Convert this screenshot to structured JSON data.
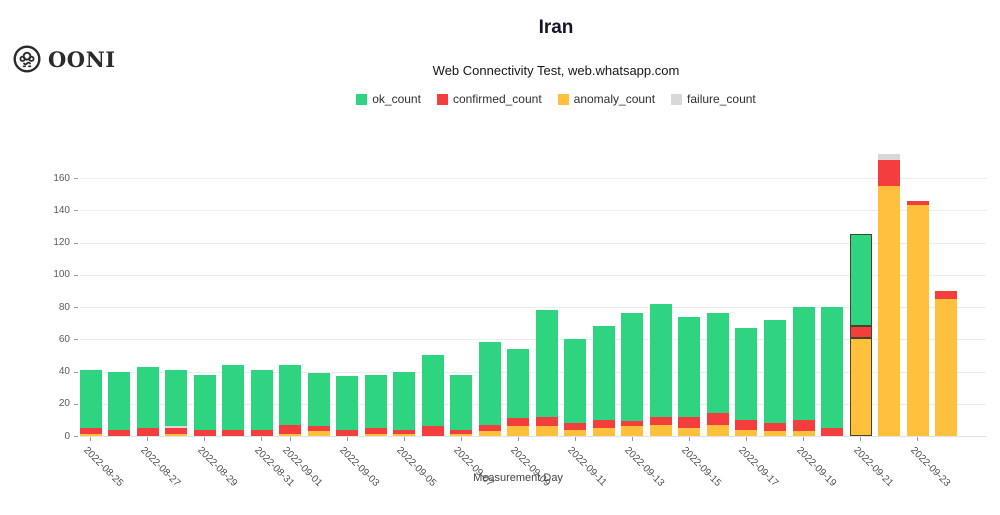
{
  "header": {
    "brand": "OONI",
    "title": "Iran",
    "subtitle": "Web Connectivity Test, web.whatsapp.com"
  },
  "legend": [
    {
      "name": "ok_count",
      "label": "ok_count",
      "color": "#2ED47F"
    },
    {
      "name": "confirmed_count",
      "label": "confirmed_count",
      "color": "#F43E3E"
    },
    {
      "name": "anomaly_count",
      "label": "anomaly_count",
      "color": "#FFC13B"
    },
    {
      "name": "failure_count",
      "label": "failure_count",
      "color": "#D8D8D8"
    }
  ],
  "colors": {
    "ok": "#2ED47F",
    "confirmed": "#F43E3E",
    "anomaly": "#FFC13B",
    "failure": "#D8D8D8",
    "highlight_border": "#45452e",
    "gridline": "#ececec"
  },
  "chart_data": {
    "type": "bar",
    "stacked": true,
    "title": "Iran",
    "subtitle": "Web Connectivity Test, web.whatsapp.com",
    "xlabel": "Measurement Day",
    "ylabel": "",
    "ylim": [
      0,
      180
    ],
    "grid": true,
    "legend_position": "top",
    "yticks": [
      0,
      20,
      40,
      60,
      80,
      100,
      120,
      140,
      160
    ],
    "categories": [
      "2022-08-25",
      "2022-08-26",
      "2022-08-27",
      "2022-08-28",
      "2022-08-29",
      "2022-08-30",
      "2022-08-31",
      "2022-09-01",
      "2022-09-02",
      "2022-09-03",
      "2022-09-04",
      "2022-09-05",
      "2022-09-06",
      "2022-09-07",
      "2022-09-08",
      "2022-09-09",
      "2022-09-10",
      "2022-09-11",
      "2022-09-12",
      "2022-09-13",
      "2022-09-14",
      "2022-09-15",
      "2022-09-16",
      "2022-09-17",
      "2022-09-18",
      "2022-09-19",
      "2022-09-20",
      "2022-09-21",
      "2022-09-22",
      "2022-09-23",
      "2022-09-24"
    ],
    "x_tick_labels": [
      "2022-08-25",
      "2022-08-27",
      "2022-08-29",
      "2022-08-31",
      "2022-09-01",
      "2022-09-03",
      "2022-09-05",
      "2022-09-07",
      "2022-09-09",
      "2022-09-11",
      "2022-09-13",
      "2022-09-15",
      "2022-09-17",
      "2022-09-19",
      "2022-09-21",
      "2022-09-23"
    ],
    "series": [
      {
        "name": "anomaly_count",
        "color": "#FFC13B",
        "values": [
          1,
          0,
          0,
          1,
          0,
          0,
          0,
          1,
          3,
          0,
          1,
          1,
          0,
          1,
          3,
          6,
          6,
          4,
          5,
          6,
          7,
          5,
          7,
          4,
          3,
          3,
          0,
          61,
          155,
          143,
          85
        ]
      },
      {
        "name": "confirmed_count",
        "color": "#F43E3E",
        "values": [
          4,
          4,
          5,
          4,
          4,
          4,
          4,
          6,
          3,
          4,
          4,
          3,
          6,
          3,
          4,
          5,
          6,
          4,
          5,
          3,
          5,
          7,
          7,
          6,
          5,
          7,
          5,
          7,
          16,
          3,
          5
        ]
      },
      {
        "name": "failure_count",
        "color": "#D8D8D8",
        "values": [
          0,
          0,
          0,
          1,
          0,
          0,
          0,
          0,
          0,
          0,
          0,
          0,
          0,
          0,
          0,
          0,
          0,
          0,
          0,
          0,
          0,
          0,
          0,
          0,
          0,
          0,
          0,
          0,
          4,
          0,
          0
        ]
      },
      {
        "name": "ok_count",
        "color": "#2ED47F",
        "values": [
          36,
          36,
          38,
          35,
          34,
          40,
          37,
          37,
          33,
          33,
          33,
          36,
          44,
          34,
          51,
          43,
          66,
          52,
          58,
          67,
          70,
          62,
          62,
          57,
          64,
          70,
          75,
          57,
          0,
          0,
          0
        ]
      }
    ],
    "highlighted_category": "2022-09-21"
  }
}
